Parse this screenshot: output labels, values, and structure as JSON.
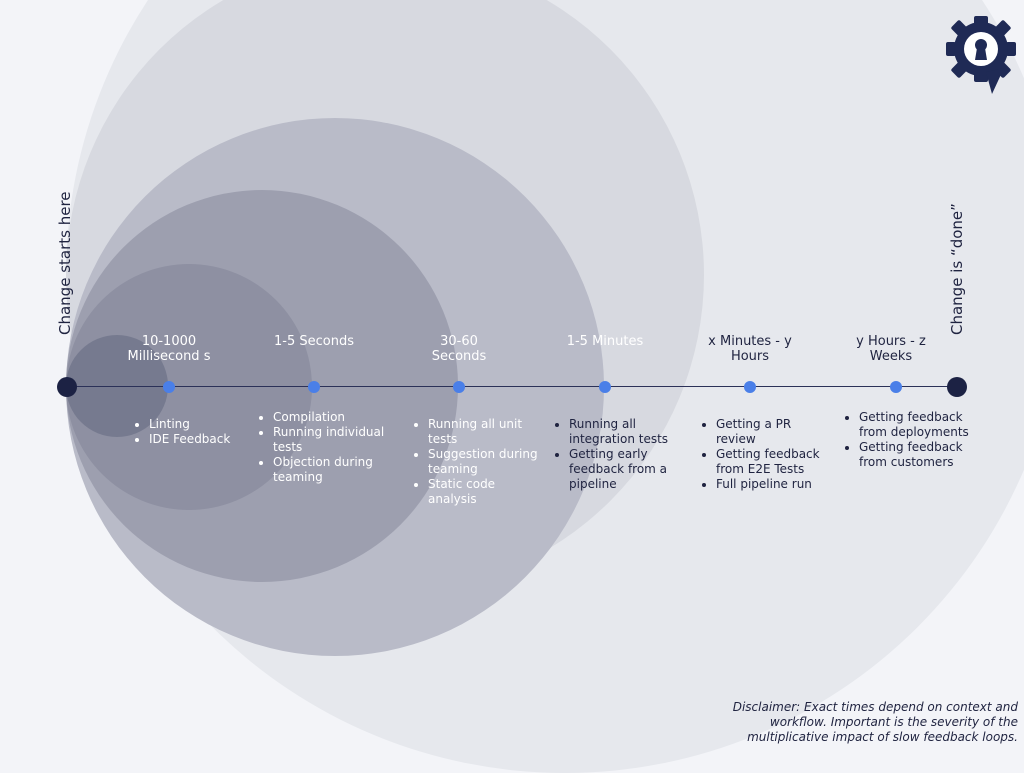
{
  "start_label": "Change starts here",
  "end_label": "Change is “done”",
  "stages": [
    {
      "label": "10-1000 Millisecond s",
      "items": [
        "Linting",
        "IDE Feedback"
      ]
    },
    {
      "label": "1-5 Seconds",
      "items": [
        "Compilation",
        "Running individual tests",
        "Objection during teaming"
      ]
    },
    {
      "label": "30-60 Seconds",
      "items": [
        "Running all unit tests",
        "Suggestion during teaming",
        "Static code analysis"
      ]
    },
    {
      "label": "1-5 Minutes",
      "items": [
        "Running all integration tests",
        "Getting early feedback from a pipeline"
      ]
    },
    {
      "label": "x Minutes - y Hours",
      "items": [
        "Getting a PR review",
        "Getting feedback from E2E Tests",
        "Full pipeline run"
      ]
    },
    {
      "label": "y Hours - z Weeks",
      "items": [
        "Getting feedback from deployments",
        "Getting feedback from customers"
      ]
    }
  ],
  "disclaimer": "Disclaimer: Exact times depend on context and workflow. Important is the severity of the multiplicative impact of slow feedback loops.",
  "colors": {
    "axis": "#2b3158",
    "tick": "#4a7fe8",
    "end_dot": "#1c2244",
    "logo": "#1f2a55"
  },
  "icons": {
    "logo": "gear-keyhole-speech-bubble-icon"
  }
}
